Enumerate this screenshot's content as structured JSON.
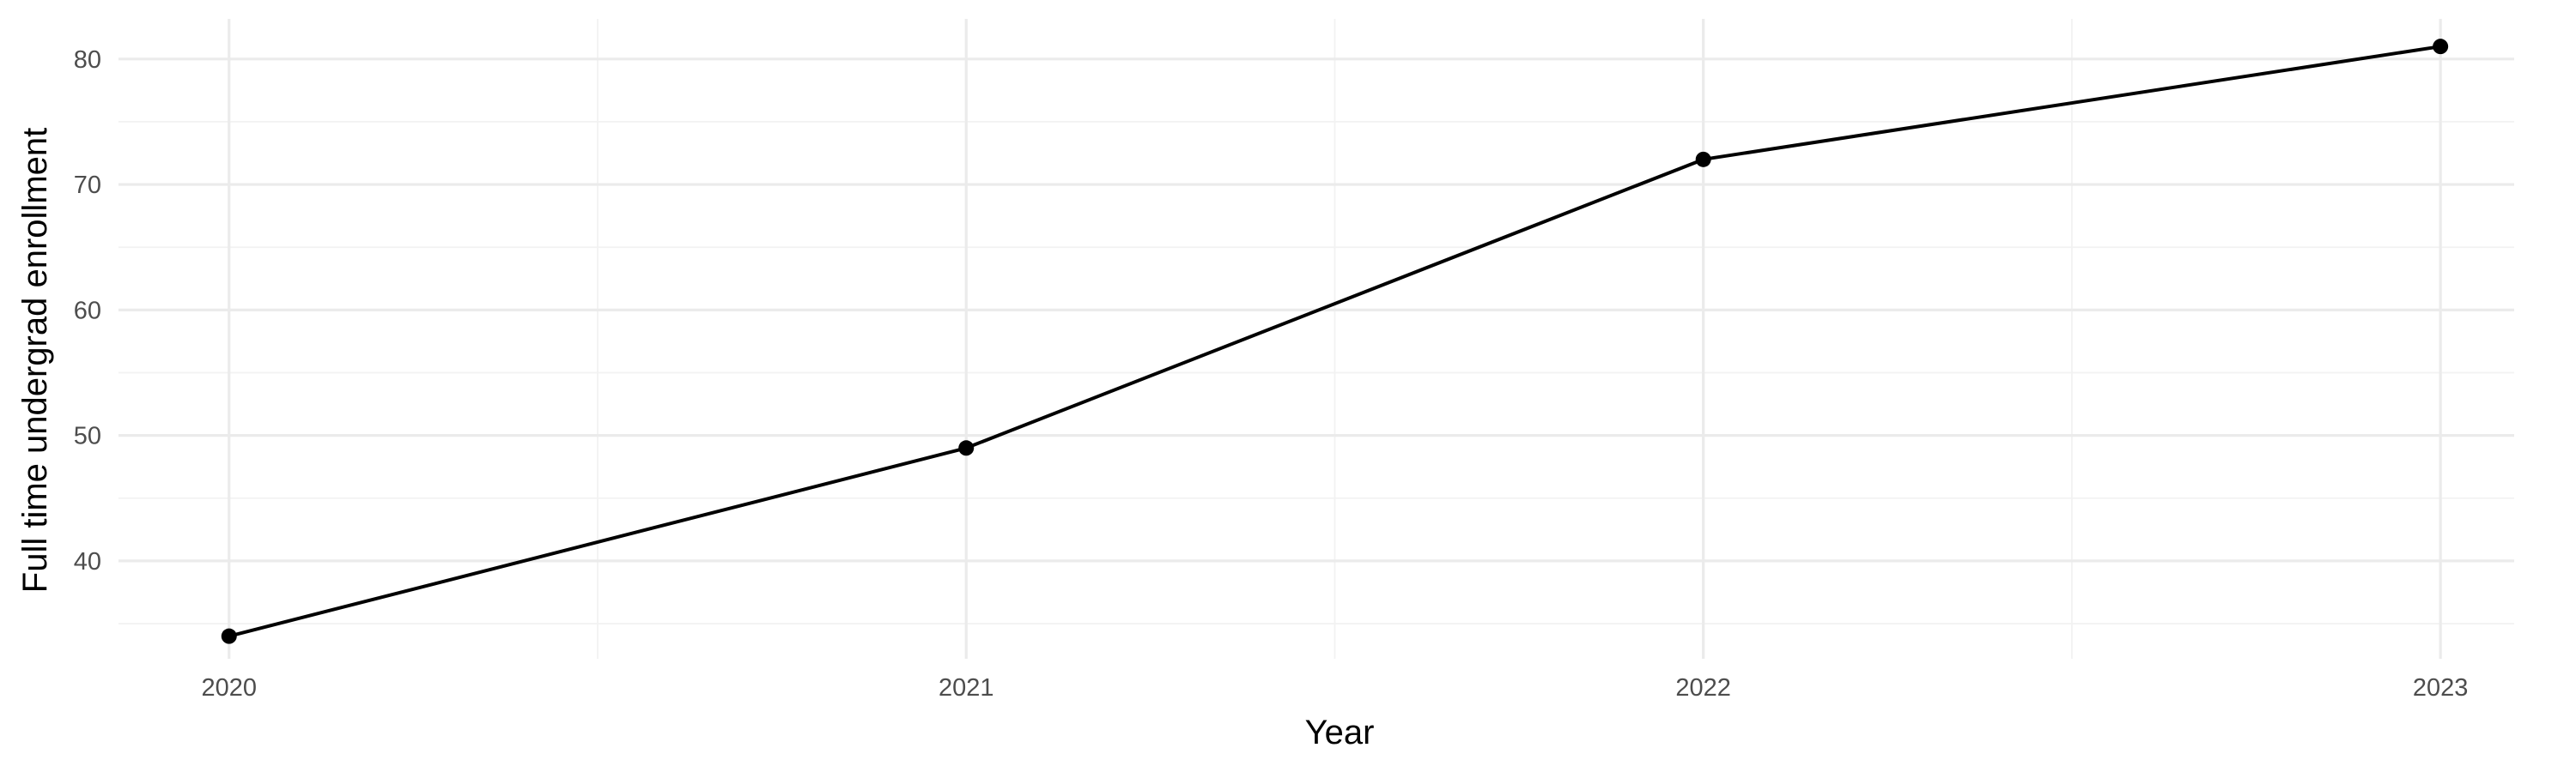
{
  "chart_data": {
    "type": "line",
    "title": "",
    "xlabel": "Year",
    "ylabel": "Full time undergrad enrollment",
    "x": [
      2020,
      2021,
      2022,
      2023
    ],
    "series": [
      {
        "values": [
          34,
          49,
          72,
          81
        ]
      }
    ],
    "x_ticks": [
      "2020",
      "2021",
      "2022",
      "2023"
    ],
    "y_ticks": [
      "40",
      "50",
      "60",
      "70",
      "80"
    ],
    "xlim": [
      2019.85,
      2023.1
    ],
    "ylim": [
      32.2,
      83.2
    ],
    "grid": true,
    "line_color": "#000000",
    "point_color": "#000000"
  }
}
